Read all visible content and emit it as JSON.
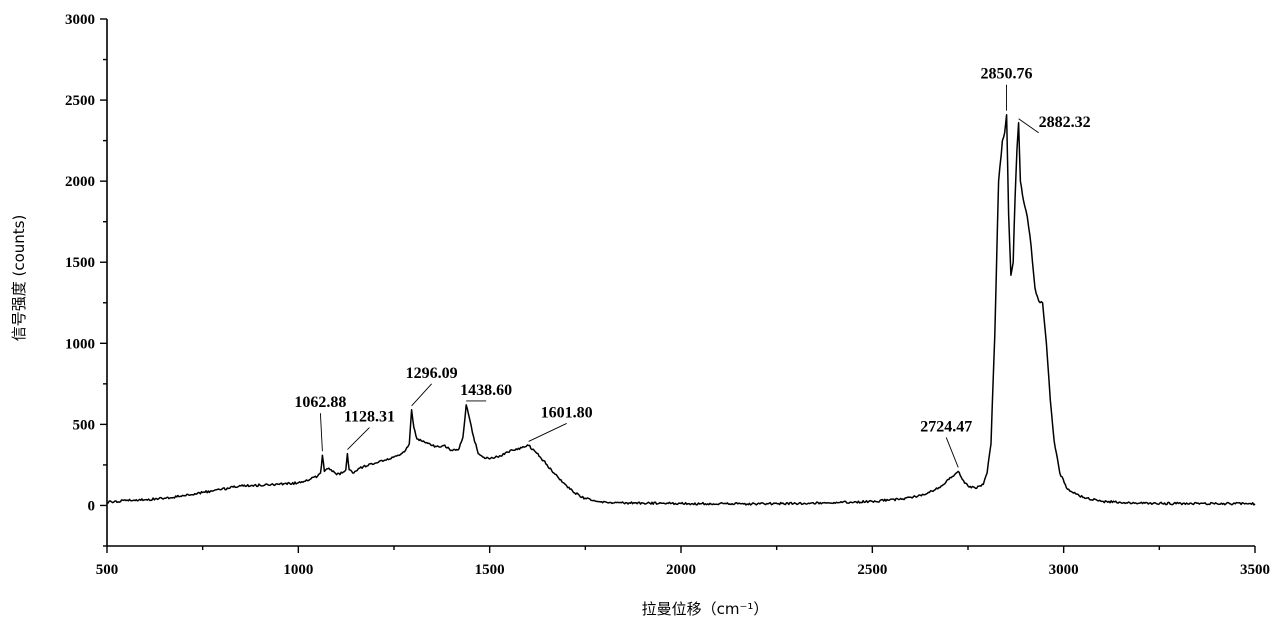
{
  "chart_data": {
    "type": "line",
    "title": "",
    "xlabel": "拉曼位移（cm⁻¹）",
    "ylabel": "信号强度 (counts)",
    "xlim": [
      500,
      3500
    ],
    "ylim": [
      -250,
      3000
    ],
    "x_ticks": [
      500,
      1000,
      1500,
      2000,
      2500,
      3000,
      3500
    ],
    "x_tick_labels": [
      "500",
      "1000",
      "1500",
      "2000",
      "2500",
      "3000",
      "3500"
    ],
    "y_ticks": [
      0,
      500,
      1000,
      1500,
      2000,
      2500,
      3000
    ],
    "y_tick_labels": [
      "0",
      "500",
      "1000",
      "1500",
      "2000",
      "2500",
      "3000"
    ],
    "grid": false,
    "series": [
      {
        "x": [
          500,
          550,
          600,
          650,
          700,
          750,
          800,
          850,
          900,
          950,
          1000,
          1030,
          1050,
          1058,
          1062.88,
          1068,
          1080,
          1100,
          1115,
          1124,
          1128.31,
          1133,
          1145,
          1160,
          1170,
          1200,
          1230,
          1260,
          1280,
          1290,
          1296.09,
          1302,
          1310,
          1330,
          1350,
          1370,
          1380,
          1400,
          1420,
          1430,
          1438.6,
          1445,
          1455,
          1470,
          1490,
          1520,
          1560,
          1590,
          1601.8,
          1620,
          1650,
          1680,
          1710,
          1740,
          1780,
          1850,
          1900,
          2000,
          2100,
          2200,
          2300,
          2400,
          2500,
          2580,
          2640,
          2680,
          2700,
          2715,
          2724.47,
          2735,
          2750,
          2770,
          2790,
          2800,
          2810,
          2820,
          2830,
          2840,
          2846,
          2850.76,
          2856,
          2862,
          2868,
          2873,
          2878,
          2882.32,
          2887,
          2895,
          2905,
          2915,
          2925,
          2935,
          2945,
          2955,
          2965,
          2975,
          2990,
          3010,
          3050,
          3100,
          3200,
          3300,
          3400,
          3500
        ],
        "y": [
          20,
          30,
          35,
          45,
          60,
          80,
          100,
          120,
          125,
          130,
          140,
          160,
          180,
          200,
          310,
          210,
          230,
          190,
          200,
          220,
          320,
          220,
          200,
          230,
          240,
          260,
          280,
          310,
          340,
          380,
          590,
          480,
          410,
          390,
          370,
          360,
          370,
          340,
          350,
          420,
          620,
          560,
          450,
          320,
          290,
          300,
          340,
          360,
          370,
          330,
          250,
          170,
          100,
          50,
          25,
          15,
          15,
          12,
          10,
          10,
          12,
          18,
          25,
          40,
          70,
          120,
          160,
          190,
          210,
          160,
          120,
          105,
          130,
          200,
          380,
          1050,
          2000,
          2250,
          2300,
          2410,
          1800,
          1420,
          1500,
          1900,
          2200,
          2360,
          2000,
          1880,
          1780,
          1600,
          1340,
          1260,
          1250,
          1000,
          650,
          400,
          200,
          100,
          50,
          25,
          15,
          12,
          12,
          10
        ]
      }
    ],
    "annotations": [
      {
        "text": "1062.88",
        "x": 1062.88,
        "y": 310
      },
      {
        "text": "1128.31",
        "x": 1128.31,
        "y": 320
      },
      {
        "text": "1296.09",
        "x": 1296.09,
        "y": 590
      },
      {
        "text": "1438.60",
        "x": 1438.6,
        "y": 620
      },
      {
        "text": "1601.80",
        "x": 1601.8,
        "y": 370
      },
      {
        "text": "2724.47",
        "x": 2724.47,
        "y": 210
      },
      {
        "text": "2850.76",
        "x": 2850.76,
        "y": 2410
      },
      {
        "text": "2882.32",
        "x": 2882.32,
        "y": 2360
      }
    ]
  }
}
